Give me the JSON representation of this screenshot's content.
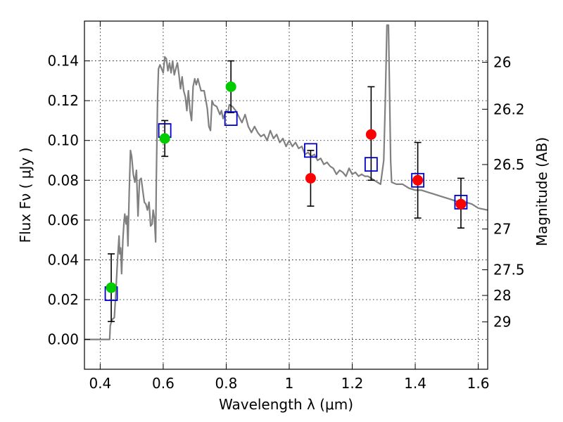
{
  "chart_data": {
    "type": "scatter",
    "xlabel": "Wavelength  λ (μm)",
    "ylabel": "Flux  Fν  ( μJy )",
    "ylabel_right": "Magnitude (AB)",
    "xlim": [
      0.35,
      1.63
    ],
    "ylim": [
      -0.015,
      0.16
    ],
    "grid": true,
    "x_ticks": [
      {
        "value": 0.4,
        "label": "0.4"
      },
      {
        "value": 0.6,
        "label": "0.6"
      },
      {
        "value": 0.8,
        "label": "0.8"
      },
      {
        "value": 1.0,
        "label": "1"
      },
      {
        "value": 1.2,
        "label": "1.2"
      },
      {
        "value": 1.4,
        "label": "1.4"
      },
      {
        "value": 1.6,
        "label": "1.6"
      }
    ],
    "y_ticks": [
      {
        "value": 0.0,
        "label": "0.00"
      },
      {
        "value": 0.02,
        "label": "0.02"
      },
      {
        "value": 0.04,
        "label": "0.04"
      },
      {
        "value": 0.06,
        "label": "0.06"
      },
      {
        "value": 0.08,
        "label": "0.08"
      },
      {
        "value": 0.1,
        "label": "0.10"
      },
      {
        "value": 0.12,
        "label": "0.12"
      },
      {
        "value": 0.14,
        "label": "0.14"
      }
    ],
    "right_ticks": [
      {
        "flux": 0.1393,
        "label": "26"
      },
      {
        "flux": 0.1157,
        "label": "26.2"
      },
      {
        "flux": 0.0879,
        "label": "26.5"
      },
      {
        "flux": 0.0555,
        "label": "27"
      },
      {
        "flux": 0.035,
        "label": "27.5"
      },
      {
        "flux": 0.0221,
        "label": "28"
      },
      {
        "flux": 0.0088,
        "label": "29"
      }
    ],
    "sed_model": {
      "color": "#808080",
      "points": [
        [
          0.35,
          0.0
        ],
        [
          0.43,
          0.0
        ],
        [
          0.432,
          0.007
        ],
        [
          0.438,
          0.01
        ],
        [
          0.445,
          0.011
        ],
        [
          0.45,
          0.025
        ],
        [
          0.455,
          0.04
        ],
        [
          0.46,
          0.052
        ],
        [
          0.462,
          0.043
        ],
        [
          0.465,
          0.046
        ],
        [
          0.468,
          0.033
        ],
        [
          0.472,
          0.05
        ],
        [
          0.475,
          0.058
        ],
        [
          0.478,
          0.063
        ],
        [
          0.482,
          0.058
        ],
        [
          0.485,
          0.062
        ],
        [
          0.488,
          0.047
        ],
        [
          0.492,
          0.074
        ],
        [
          0.496,
          0.095
        ],
        [
          0.5,
          0.092
        ],
        [
          0.505,
          0.083
        ],
        [
          0.51,
          0.079
        ],
        [
          0.515,
          0.085
        ],
        [
          0.52,
          0.062
        ],
        [
          0.525,
          0.08
        ],
        [
          0.53,
          0.081
        ],
        [
          0.535,
          0.075
        ],
        [
          0.54,
          0.069
        ],
        [
          0.545,
          0.068
        ],
        [
          0.55,
          0.065
        ],
        [
          0.555,
          0.069
        ],
        [
          0.56,
          0.057
        ],
        [
          0.565,
          0.058
        ],
        [
          0.568,
          0.065
        ],
        [
          0.572,
          0.061
        ],
        [
          0.576,
          0.049
        ],
        [
          0.578,
          0.08
        ],
        [
          0.582,
          0.121
        ],
        [
          0.585,
          0.136
        ],
        [
          0.59,
          0.138
        ],
        [
          0.6,
          0.134
        ],
        [
          0.605,
          0.142
        ],
        [
          0.61,
          0.141
        ],
        [
          0.615,
          0.135
        ],
        [
          0.62,
          0.139
        ],
        [
          0.625,
          0.134
        ],
        [
          0.63,
          0.14
        ],
        [
          0.635,
          0.133
        ],
        [
          0.64,
          0.136
        ],
        [
          0.645,
          0.139
        ],
        [
          0.65,
          0.133
        ],
        [
          0.655,
          0.126
        ],
        [
          0.66,
          0.132
        ],
        [
          0.665,
          0.125
        ],
        [
          0.67,
          0.122
        ],
        [
          0.675,
          0.115
        ],
        [
          0.68,
          0.125
        ],
        [
          0.685,
          0.115
        ],
        [
          0.69,
          0.11
        ],
        [
          0.695,
          0.127
        ],
        [
          0.7,
          0.131
        ],
        [
          0.705,
          0.128
        ],
        [
          0.71,
          0.131
        ],
        [
          0.715,
          0.128
        ],
        [
          0.72,
          0.125
        ],
        [
          0.73,
          0.125
        ],
        [
          0.74,
          0.116
        ],
        [
          0.745,
          0.107
        ],
        [
          0.75,
          0.105
        ],
        [
          0.755,
          0.12
        ],
        [
          0.76,
          0.118
        ],
        [
          0.77,
          0.117
        ],
        [
          0.78,
          0.113
        ],
        [
          0.785,
          0.115
        ],
        [
          0.79,
          0.111
        ],
        [
          0.8,
          0.115
        ],
        [
          0.805,
          0.114
        ],
        [
          0.81,
          0.118
        ],
        [
          0.82,
          0.117
        ],
        [
          0.83,
          0.115
        ],
        [
          0.84,
          0.112
        ],
        [
          0.85,
          0.109
        ],
        [
          0.86,
          0.113
        ],
        [
          0.87,
          0.107
        ],
        [
          0.88,
          0.104
        ],
        [
          0.89,
          0.107
        ],
        [
          0.9,
          0.104
        ],
        [
          0.91,
          0.102
        ],
        [
          0.92,
          0.103
        ],
        [
          0.93,
          0.1
        ],
        [
          0.94,
          0.105
        ],
        [
          0.95,
          0.101
        ],
        [
          0.96,
          0.103
        ],
        [
          0.97,
          0.099
        ],
        [
          0.98,
          0.101
        ],
        [
          0.99,
          0.097
        ],
        [
          1.0,
          0.1
        ],
        [
          1.01,
          0.097
        ],
        [
          1.02,
          0.099
        ],
        [
          1.03,
          0.096
        ],
        [
          1.04,
          0.097
        ],
        [
          1.05,
          0.093
        ],
        [
          1.06,
          0.094
        ],
        [
          1.07,
          0.092
        ],
        [
          1.08,
          0.093
        ],
        [
          1.09,
          0.09
        ],
        [
          1.1,
          0.091
        ],
        [
          1.11,
          0.088
        ],
        [
          1.12,
          0.089
        ],
        [
          1.13,
          0.087
        ],
        [
          1.14,
          0.086
        ],
        [
          1.15,
          0.083
        ],
        [
          1.16,
          0.085
        ],
        [
          1.17,
          0.084
        ],
        [
          1.18,
          0.082
        ],
        [
          1.19,
          0.086
        ],
        [
          1.2,
          0.083
        ],
        [
          1.21,
          0.084
        ],
        [
          1.22,
          0.082
        ],
        [
          1.23,
          0.083
        ],
        [
          1.24,
          0.082
        ],
        [
          1.25,
          0.082
        ],
        [
          1.26,
          0.081
        ],
        [
          1.27,
          0.08
        ],
        [
          1.29,
          0.078
        ],
        [
          1.3,
          0.09
        ],
        [
          1.305,
          0.12
        ],
        [
          1.31,
          0.158
        ],
        [
          1.315,
          0.158
        ],
        [
          1.318,
          0.13
        ],
        [
          1.322,
          0.09
        ],
        [
          1.325,
          0.079
        ],
        [
          1.34,
          0.078
        ],
        [
          1.36,
          0.078
        ],
        [
          1.38,
          0.076
        ],
        [
          1.4,
          0.075
        ],
        [
          1.42,
          0.075
        ],
        [
          1.44,
          0.074
        ],
        [
          1.46,
          0.073
        ],
        [
          1.48,
          0.072
        ],
        [
          1.5,
          0.071
        ],
        [
          1.52,
          0.07
        ],
        [
          1.54,
          0.069
        ],
        [
          1.56,
          0.069
        ],
        [
          1.58,
          0.068
        ],
        [
          1.6,
          0.066
        ],
        [
          1.63,
          0.065
        ]
      ]
    },
    "series": [
      {
        "marker": "open-square",
        "color": "#0000cc",
        "points": [
          [
            0.435,
            0.023
          ],
          [
            0.605,
            0.105
          ],
          [
            0.815,
            0.111
          ],
          [
            1.068,
            0.095
          ],
          [
            1.26,
            0.088
          ],
          [
            1.408,
            0.08
          ],
          [
            1.545,
            0.069
          ]
        ]
      },
      {
        "marker": "filled-circle",
        "color": "#00cc00",
        "points": [
          [
            0.435,
            0.026
          ],
          [
            0.605,
            0.101
          ],
          [
            0.815,
            0.127
          ]
        ]
      },
      {
        "marker": "filled-circle",
        "color": "#ff0000",
        "points": [
          [
            1.068,
            0.081
          ],
          [
            1.26,
            0.103
          ],
          [
            1.408,
            0.08
          ],
          [
            1.545,
            0.068
          ]
        ]
      }
    ],
    "error_bars": [
      {
        "x": 0.435,
        "low": 0.009,
        "high": 0.043
      },
      {
        "x": 0.605,
        "low": 0.092,
        "high": 0.11
      },
      {
        "x": 0.815,
        "low": 0.114,
        "high": 0.14
      },
      {
        "x": 1.068,
        "low": 0.067,
        "high": 0.095
      },
      {
        "x": 1.26,
        "low": 0.08,
        "high": 0.127
      },
      {
        "x": 1.408,
        "low": 0.061,
        "high": 0.099
      },
      {
        "x": 1.545,
        "low": 0.056,
        "high": 0.081
      }
    ]
  }
}
